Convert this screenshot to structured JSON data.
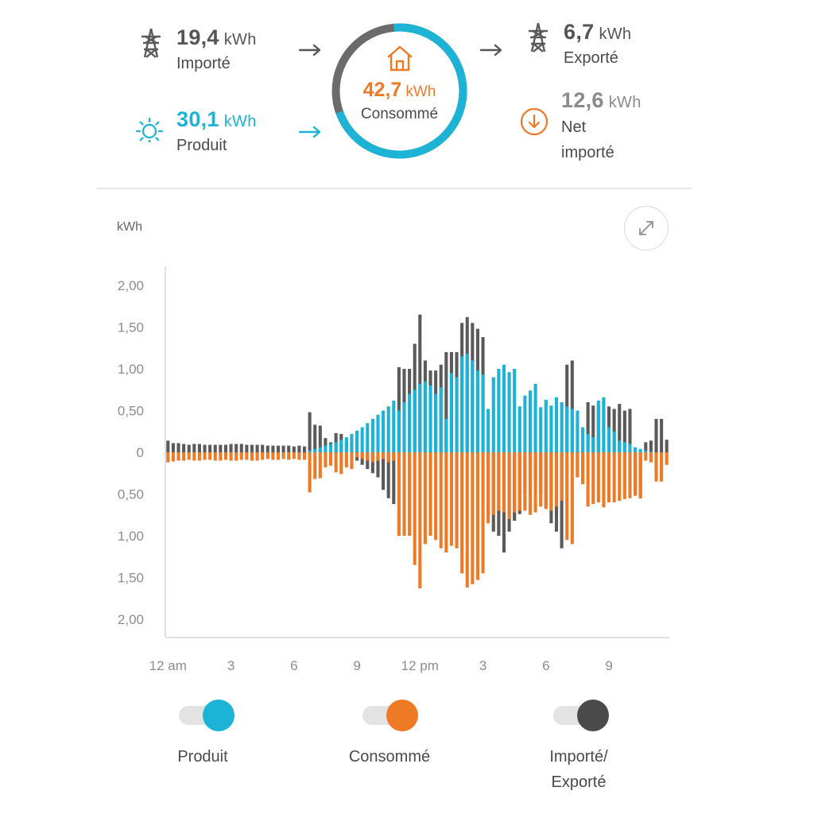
{
  "summary": {
    "imported": {
      "value": "19,4",
      "unit": "kWh",
      "label": "Importé",
      "icon": "power-tower-icon"
    },
    "produced": {
      "value": "30,1",
      "unit": "kWh",
      "label": "Produit",
      "icon": "sun-icon"
    },
    "consumed": {
      "value": "42,7",
      "unit": "kWh",
      "label": "Consommé",
      "icon": "house-icon",
      "ring_solar_fraction": 0.71
    },
    "exported": {
      "value": "6,7",
      "unit": "kWh",
      "label": "Exporté",
      "icon": "power-tower-icon"
    },
    "net": {
      "value": "12,6",
      "unit": "kWh",
      "label_line1": "Net",
      "label_line2": "importé",
      "icon": "down-arrow-circle-icon"
    }
  },
  "chart_header": {
    "unit_label": "kWh",
    "expand_icon": "expand-arrows-icon"
  },
  "colors": {
    "produced": "#1cb3d7",
    "consumed": "#ef7a26",
    "grid": "#5a5a5a",
    "ring_grey": "#6b6b6b"
  },
  "chart_data": {
    "type": "bar",
    "title": "",
    "ylabel": "kWh",
    "xlabel": "",
    "ylim": [
      -2.2,
      2.2
    ],
    "y_ticks": [
      {
        "value": 2.0,
        "label": "2,00"
      },
      {
        "value": 1.5,
        "label": "1,50"
      },
      {
        "value": 1.0,
        "label": "1,00"
      },
      {
        "value": 0.5,
        "label": "0,50"
      },
      {
        "value": 0,
        "label": "0"
      },
      {
        "value": -0.5,
        "label": "0,50"
      },
      {
        "value": -1.0,
        "label": "1,00"
      },
      {
        "value": -1.5,
        "label": "1,50"
      },
      {
        "value": -2.0,
        "label": "2,00"
      }
    ],
    "x_tick_labels": [
      {
        "hour": 0,
        "label": "12 am"
      },
      {
        "hour": 3,
        "label": "3"
      },
      {
        "hour": 6,
        "label": "6"
      },
      {
        "hour": 9,
        "label": "9"
      },
      {
        "hour": 12,
        "label": "12 pm"
      },
      {
        "hour": 15,
        "label": "3"
      },
      {
        "hour": 18,
        "label": "6"
      },
      {
        "hour": 21,
        "label": "9"
      }
    ],
    "interval_minutes": 15,
    "series": [
      {
        "name": "Produit",
        "color": "#1cb3d7",
        "values": [
          0,
          0,
          0,
          0,
          0,
          0,
          0,
          0,
          0,
          0,
          0,
          0,
          0,
          0,
          0,
          0,
          0,
          0,
          0,
          0,
          0,
          0,
          0,
          0,
          0,
          0,
          0,
          0.02,
          0.04,
          0.06,
          0.08,
          0.1,
          0.12,
          0.15,
          0.18,
          0.22,
          0.26,
          0.3,
          0.35,
          0.4,
          0.45,
          0.5,
          0.55,
          0.62,
          0.5,
          0.6,
          0.7,
          0.75,
          0.82,
          0.85,
          0.8,
          0.7,
          0.78,
          0.4,
          0.95,
          0.9,
          1.15,
          1.18,
          1.1,
          0.98,
          0.93,
          0.52,
          0.9,
          1.0,
          1.05,
          0.96,
          1.0,
          0.55,
          0.68,
          0.74,
          0.82,
          0.54,
          0.63,
          0.56,
          0.66,
          0.6,
          0.55,
          0.52,
          0.5,
          0.3,
          0.22,
          0.18,
          0.62,
          0.66,
          0.3,
          0.25,
          0.14,
          0.12,
          0.1,
          0.06,
          0.04,
          0.02,
          0.01,
          0,
          0,
          0
        ]
      },
      {
        "name": "Consommé",
        "color": "#ef7a26",
        "values": [
          -0.12,
          -0.11,
          -0.1,
          -0.1,
          -0.09,
          -0.1,
          -0.1,
          -0.09,
          -0.09,
          -0.1,
          -0.1,
          -0.09,
          -0.1,
          -0.1,
          -0.09,
          -0.09,
          -0.1,
          -0.1,
          -0.09,
          -0.08,
          -0.09,
          -0.09,
          -0.08,
          -0.09,
          -0.08,
          -0.09,
          -0.09,
          -0.48,
          -0.32,
          -0.31,
          -0.18,
          -0.16,
          -0.24,
          -0.26,
          -0.18,
          -0.2,
          -0.06,
          -0.08,
          -0.1,
          -0.12,
          -0.1,
          -0.08,
          -0.12,
          -0.1,
          -1.0,
          -1.0,
          -1.0,
          -1.35,
          -1.63,
          -1.1,
          -1.0,
          -1.05,
          -1.15,
          -1.2,
          -1.12,
          -1.15,
          -1.45,
          -1.62,
          -1.58,
          -1.53,
          -1.45,
          -0.85,
          -0.75,
          -0.7,
          -0.72,
          -0.8,
          -0.72,
          -0.7,
          -0.7,
          -0.75,
          -0.72,
          -0.65,
          -0.68,
          -0.7,
          -0.65,
          -0.58,
          -1.05,
          -1.1,
          -0.3,
          -0.38,
          -0.65,
          -0.62,
          -0.6,
          -0.66,
          -0.6,
          -0.6,
          -0.58,
          -0.56,
          -0.55,
          -0.52,
          -0.55,
          -0.1,
          -0.12,
          -0.35,
          -0.35,
          -0.15,
          -0.15
        ]
      },
      {
        "name": "Importé/Exporté",
        "color": "#5a5a5a",
        "values": [
          0.14,
          0.11,
          0.11,
          0.1,
          0.09,
          0.1,
          0.1,
          0.09,
          0.09,
          0.09,
          0.09,
          0.09,
          0.1,
          0.1,
          0.1,
          0.09,
          0.09,
          0.09,
          0.09,
          0.08,
          0.08,
          0.08,
          0.08,
          0.08,
          0.07,
          0.08,
          0.07,
          0.48,
          0.33,
          0.32,
          0.17,
          0.12,
          0.23,
          0.22,
          0.13,
          0.16,
          -0.1,
          -0.15,
          -0.2,
          -0.25,
          -0.3,
          -0.45,
          -0.55,
          -0.62,
          1.02,
          1.0,
          1.0,
          1.3,
          1.65,
          1.1,
          0.98,
          0.98,
          1.05,
          1.2,
          1.2,
          1.2,
          1.55,
          1.62,
          1.55,
          1.48,
          1.38,
          -0.75,
          -0.95,
          -1.0,
          -1.2,
          -0.95,
          -0.82,
          -0.74,
          -0.5,
          -0.4,
          -0.35,
          -0.5,
          -0.65,
          -0.85,
          -0.95,
          -1.15,
          1.05,
          1.1,
          -0.3,
          -0.38,
          0.6,
          0.56,
          0.55,
          0.6,
          0.55,
          0.52,
          0.58,
          0.5,
          0.52,
          -0.52,
          -0.55,
          0.12,
          0.14,
          0.4,
          0.4,
          0.15,
          0.15
        ]
      }
    ],
    "grid": false,
    "legend": "bottom"
  },
  "legend": [
    {
      "label": "Produit",
      "color": "#1cb3d7",
      "on": true
    },
    {
      "label": "Consommé",
      "color": "#ef7a26",
      "on": true
    },
    {
      "label_line1": "Importé/",
      "label_line2": "Exporté",
      "color": "#4a4a4a",
      "on": true
    }
  ]
}
